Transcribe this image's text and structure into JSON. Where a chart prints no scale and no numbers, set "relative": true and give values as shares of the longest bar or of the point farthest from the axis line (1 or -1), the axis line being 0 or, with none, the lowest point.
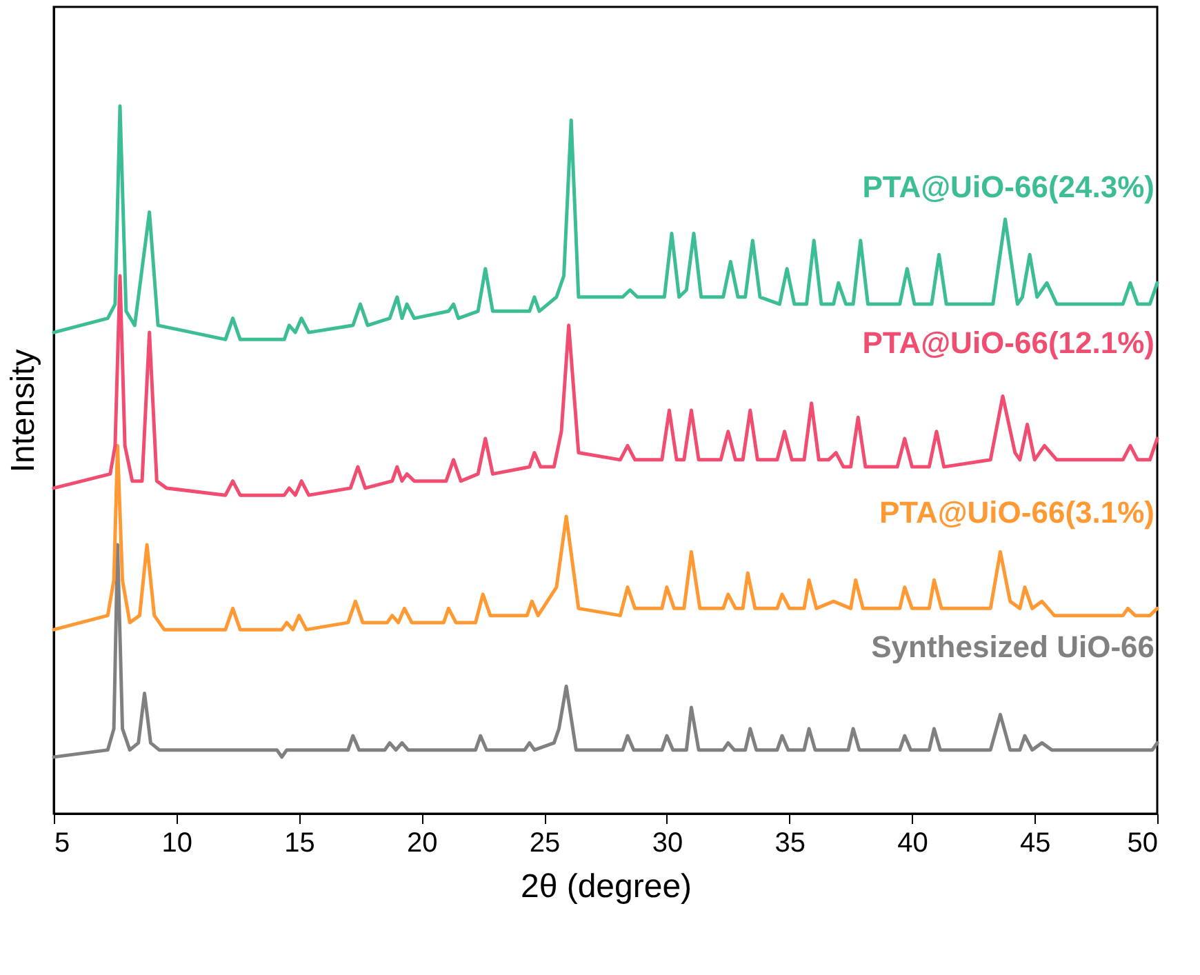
{
  "chart_data": {
    "type": "line",
    "relative": true,
    "xlabel": "2θ (degree)",
    "ylabel": "Intensity",
    "xlim": [
      5,
      50
    ],
    "xticks": [
      5,
      10,
      15,
      20,
      25,
      30,
      35,
      40,
      45,
      50
    ],
    "tick_labels": "x",
    "grid": false,
    "marker": "none",
    "line_style": "solid",
    "series": [
      {
        "name": "Synthesized UiO-66",
        "color": "#808080",
        "x": [
          5,
          7.2,
          7.45,
          7.6,
          7.8,
          8.1,
          8.45,
          8.7,
          8.95,
          9.3,
          12.0,
          12.2,
          12.45,
          14.1,
          14.3,
          14.5,
          14.7,
          14.9,
          15.15,
          17.0,
          17.2,
          17.45,
          18.5,
          18.7,
          18.95,
          19.2,
          19.45,
          20.8,
          21.0,
          21.2,
          22.2,
          22.4,
          22.65,
          24.2,
          24.4,
          24.6,
          25.4,
          25.6,
          25.9,
          26.3,
          28.2,
          28.4,
          28.65,
          29.8,
          30.0,
          30.25,
          30.8,
          31.0,
          31.3,
          32.3,
          32.5,
          32.75,
          33.2,
          33.4,
          33.65,
          34.5,
          34.7,
          34.95,
          35.6,
          35.8,
          36.05,
          37.4,
          37.6,
          37.85,
          39.5,
          39.7,
          39.95,
          40.7,
          40.9,
          41.15,
          43.2,
          43.6,
          44.0,
          44.4,
          44.6,
          44.9,
          45.3,
          45.7,
          48.6,
          48.8,
          49.05,
          49.8,
          50
        ],
        "values": [
          0.08,
          0.09,
          0.12,
          0.38,
          0.12,
          0.09,
          0.1,
          0.17,
          0.1,
          0.09,
          0.09,
          0.09,
          0.09,
          0.09,
          0.08,
          0.09,
          0.09,
          0.09,
          0.09,
          0.09,
          0.11,
          0.09,
          0.09,
          0.1,
          0.09,
          0.1,
          0.09,
          0.09,
          0.09,
          0.09,
          0.09,
          0.11,
          0.09,
          0.09,
          0.1,
          0.09,
          0.1,
          0.12,
          0.18,
          0.09,
          0.09,
          0.11,
          0.09,
          0.09,
          0.11,
          0.09,
          0.09,
          0.15,
          0.09,
          0.09,
          0.1,
          0.09,
          0.09,
          0.12,
          0.09,
          0.09,
          0.11,
          0.09,
          0.09,
          0.12,
          0.09,
          0.09,
          0.12,
          0.09,
          0.09,
          0.11,
          0.09,
          0.09,
          0.12,
          0.09,
          0.09,
          0.14,
          0.09,
          0.09,
          0.11,
          0.09,
          0.1,
          0.09,
          0.09,
          0.09,
          0.09,
          0.09,
          0.1
        ]
      },
      {
        "name": "PTA@UiO-66(3.1%)",
        "color": "#ff9933",
        "x": [
          5,
          7.2,
          7.45,
          7.6,
          7.8,
          8.1,
          8.5,
          8.8,
          9.1,
          9.5,
          12.0,
          12.3,
          12.6,
          14.3,
          14.5,
          14.75,
          15.0,
          15.3,
          17.0,
          17.3,
          17.6,
          18.6,
          18.8,
          19.05,
          19.3,
          19.6,
          20.9,
          21.1,
          21.4,
          22.2,
          22.5,
          22.8,
          24.3,
          24.5,
          24.75,
          25.5,
          25.9,
          26.4,
          28.1,
          28.4,
          28.7,
          29.8,
          30.0,
          30.3,
          30.7,
          31.0,
          31.35,
          32.3,
          32.5,
          32.8,
          33.1,
          33.3,
          33.6,
          34.5,
          34.7,
          35.0,
          35.6,
          35.8,
          36.1,
          36.8,
          37.5,
          37.7,
          38.0,
          39.5,
          39.7,
          40.0,
          40.7,
          40.9,
          41.2,
          43.2,
          43.6,
          44.0,
          44.4,
          44.6,
          44.9,
          45.3,
          45.8,
          47.0,
          48.6,
          48.8,
          49.1,
          49.7,
          50
        ],
        "values": [
          0.26,
          0.28,
          0.33,
          0.52,
          0.33,
          0.27,
          0.28,
          0.38,
          0.28,
          0.26,
          0.26,
          0.29,
          0.26,
          0.26,
          0.27,
          0.26,
          0.28,
          0.26,
          0.27,
          0.3,
          0.27,
          0.27,
          0.28,
          0.27,
          0.29,
          0.27,
          0.27,
          0.29,
          0.27,
          0.27,
          0.31,
          0.28,
          0.28,
          0.3,
          0.28,
          0.32,
          0.42,
          0.29,
          0.28,
          0.32,
          0.29,
          0.29,
          0.32,
          0.29,
          0.29,
          0.37,
          0.29,
          0.29,
          0.31,
          0.29,
          0.29,
          0.34,
          0.29,
          0.29,
          0.31,
          0.29,
          0.29,
          0.33,
          0.29,
          0.3,
          0.29,
          0.33,
          0.29,
          0.29,
          0.32,
          0.29,
          0.29,
          0.33,
          0.29,
          0.29,
          0.37,
          0.3,
          0.29,
          0.32,
          0.29,
          0.3,
          0.28,
          0.28,
          0.28,
          0.29,
          0.28,
          0.28,
          0.29
        ]
      },
      {
        "name": "PTA@UiO-66(12.1%)",
        "color": "#f04d70",
        "x": [
          5,
          7.3,
          7.5,
          7.7,
          7.9,
          8.2,
          8.6,
          8.9,
          9.2,
          9.6,
          12.0,
          12.3,
          12.6,
          14.4,
          14.6,
          14.85,
          15.1,
          15.4,
          17.1,
          17.4,
          17.7,
          18.8,
          19.0,
          19.2,
          19.4,
          19.7,
          21.0,
          21.3,
          21.6,
          22.3,
          22.6,
          22.9,
          24.4,
          24.6,
          24.85,
          25.4,
          25.7,
          26.0,
          26.4,
          28.1,
          28.4,
          28.7,
          29.8,
          30.1,
          30.4,
          30.7,
          31.0,
          31.3,
          32.2,
          32.5,
          32.8,
          33.1,
          33.4,
          33.7,
          34.5,
          34.8,
          35.1,
          35.6,
          35.9,
          36.2,
          36.6,
          36.9,
          37.2,
          37.5,
          37.8,
          38.1,
          39.4,
          39.7,
          40.0,
          40.7,
          41.0,
          41.3,
          43.2,
          43.7,
          44.2,
          44.4,
          44.7,
          45.0,
          45.4,
          45.9,
          47.0,
          48.6,
          48.9,
          49.2,
          49.7,
          50
        ],
        "values": [
          0.46,
          0.48,
          0.52,
          0.76,
          0.52,
          0.47,
          0.47,
          0.68,
          0.47,
          0.46,
          0.45,
          0.47,
          0.45,
          0.45,
          0.46,
          0.45,
          0.47,
          0.45,
          0.46,
          0.49,
          0.46,
          0.47,
          0.49,
          0.47,
          0.48,
          0.47,
          0.47,
          0.5,
          0.47,
          0.48,
          0.53,
          0.48,
          0.49,
          0.51,
          0.49,
          0.49,
          0.54,
          0.69,
          0.51,
          0.5,
          0.52,
          0.5,
          0.5,
          0.57,
          0.5,
          0.5,
          0.57,
          0.5,
          0.5,
          0.54,
          0.5,
          0.5,
          0.57,
          0.5,
          0.5,
          0.54,
          0.5,
          0.5,
          0.58,
          0.5,
          0.5,
          0.51,
          0.49,
          0.49,
          0.56,
          0.49,
          0.49,
          0.53,
          0.49,
          0.49,
          0.54,
          0.49,
          0.5,
          0.59,
          0.51,
          0.5,
          0.55,
          0.5,
          0.52,
          0.5,
          0.5,
          0.5,
          0.52,
          0.5,
          0.5,
          0.53
        ]
      },
      {
        "name": "PTA@UiO-66(24.3%)",
        "color": "#3dbd96",
        "x": [
          5,
          7.2,
          7.5,
          7.7,
          7.95,
          8.3,
          8.9,
          9.25,
          12.0,
          12.3,
          12.6,
          14.4,
          14.6,
          14.85,
          15.1,
          15.4,
          17.2,
          17.5,
          17.8,
          18.7,
          19.0,
          19.2,
          19.4,
          19.7,
          21.1,
          21.3,
          21.5,
          22.3,
          22.6,
          22.9,
          24.4,
          24.6,
          24.8,
          25.5,
          25.8,
          26.1,
          26.4,
          28.2,
          28.5,
          28.8,
          29.9,
          30.2,
          30.5,
          30.8,
          31.1,
          31.4,
          32.3,
          32.6,
          32.9,
          33.2,
          33.5,
          33.8,
          34.6,
          34.9,
          35.2,
          35.7,
          36.0,
          36.3,
          36.8,
          37.0,
          37.3,
          37.6,
          37.9,
          38.2,
          39.5,
          39.8,
          40.1,
          40.8,
          41.1,
          41.4,
          43.3,
          43.8,
          44.3,
          44.5,
          44.8,
          45.1,
          45.5,
          45.9,
          47,
          48.6,
          48.9,
          49.2,
          49.7,
          50
        ],
        "values": [
          0.68,
          0.7,
          0.72,
          1.0,
          0.71,
          0.69,
          0.85,
          0.69,
          0.67,
          0.7,
          0.67,
          0.67,
          0.69,
          0.68,
          0.7,
          0.68,
          0.69,
          0.72,
          0.69,
          0.7,
          0.73,
          0.7,
          0.72,
          0.7,
          0.71,
          0.72,
          0.7,
          0.71,
          0.77,
          0.71,
          0.71,
          0.73,
          0.71,
          0.73,
          0.76,
          0.98,
          0.73,
          0.73,
          0.74,
          0.73,
          0.73,
          0.82,
          0.73,
          0.74,
          0.82,
          0.73,
          0.73,
          0.78,
          0.73,
          0.73,
          0.81,
          0.73,
          0.72,
          0.77,
          0.72,
          0.72,
          0.81,
          0.72,
          0.72,
          0.75,
          0.72,
          0.72,
          0.81,
          0.72,
          0.72,
          0.77,
          0.72,
          0.72,
          0.79,
          0.72,
          0.72,
          0.84,
          0.72,
          0.73,
          0.79,
          0.73,
          0.75,
          0.72,
          0.72,
          0.72,
          0.75,
          0.72,
          0.72,
          0.75
        ]
      }
    ]
  }
}
